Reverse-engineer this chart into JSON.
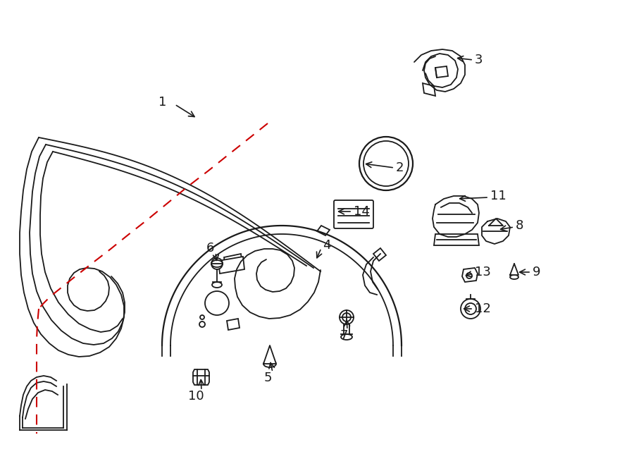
{
  "bg_color": "#ffffff",
  "line_color": "#1a1a1a",
  "red_color": "#cc0000",
  "lw": 1.3,
  "figsize": [
    9.0,
    6.61
  ],
  "dpi": 100
}
